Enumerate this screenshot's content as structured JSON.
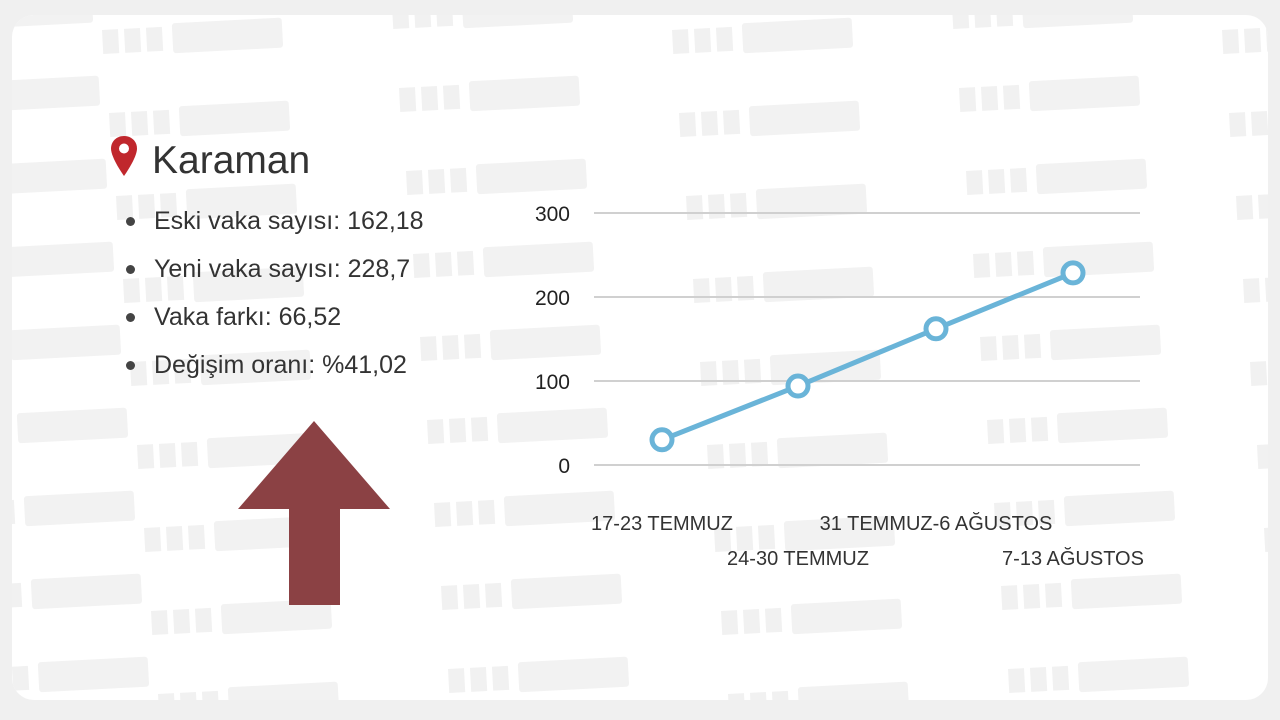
{
  "watermark": "TRT HABER",
  "location": {
    "icon": "map-pin-icon",
    "title": "Karaman",
    "pin_color": "#c0272d"
  },
  "stats": [
    "Eski vaka sayısı: 162,18",
    "Yeni vaka sayısı: 228,7",
    "Vaka farkı: 66,52",
    "Değişim oranı: %41,02"
  ],
  "trend": {
    "icon": "arrow-up-icon",
    "direction": "up",
    "color": "#8b4144"
  },
  "chart_data": {
    "type": "line",
    "categories": [
      "17-23 TEMMUZ",
      "24-30 TEMMUZ",
      "31 TEMMUZ-6 AĞUSTOS",
      "7-13 AĞUSTOS"
    ],
    "values": [
      30,
      94,
      162.18,
      228.7
    ],
    "ylim": [
      0,
      300
    ],
    "yticks": [
      "0",
      "100",
      "200",
      "300"
    ],
    "grid": true,
    "line_color": "#6ab4d8",
    "markers": "hollow-circle"
  }
}
